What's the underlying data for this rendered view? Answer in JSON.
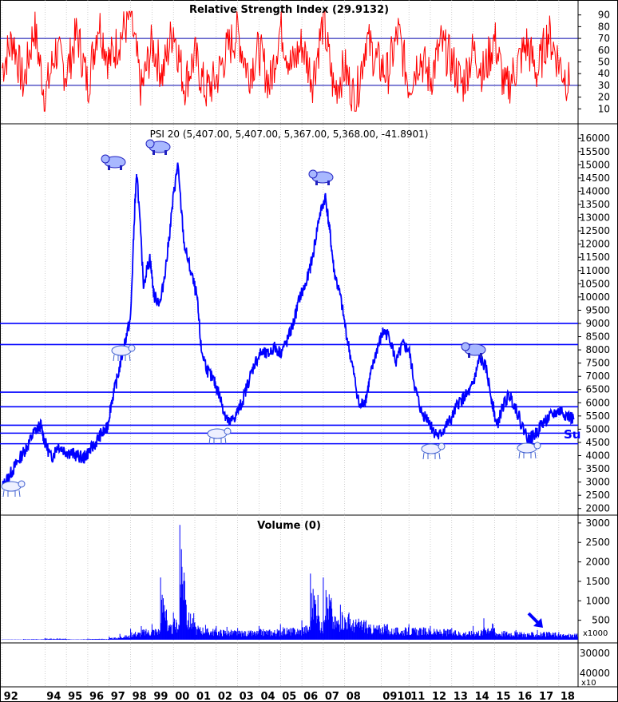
{
  "chart_data": [
    {
      "type": "line",
      "panel": "rsi",
      "title": "Relative Strength Index (29.9132)",
      "ylim": [
        0,
        100
      ],
      "yticks": [
        10,
        20,
        30,
        40,
        50,
        60,
        70,
        80,
        90
      ],
      "reference_lines": [
        30,
        70
      ],
      "series": [
        {
          "color": "#ff0000",
          "x": [
            1992.0,
            1992.5,
            1993.0,
            1993.5,
            1994.0,
            1994.5,
            1995.0,
            1995.5,
            1996.0,
            1996.5,
            1997.0,
            1997.5,
            1998.0,
            1998.5,
            1999.0,
            1999.5,
            2000.0,
            2000.5,
            2001.0,
            2001.5,
            2002.0,
            2002.5,
            2003.0,
            2003.5,
            2004.0,
            2004.5,
            2005.0,
            2005.5,
            2006.0,
            2006.5,
            2007.0,
            2007.5,
            2008.0,
            2008.5,
            2009.0,
            2009.5,
            2010.0,
            2010.5,
            2011.0,
            2011.5,
            2012.0,
            2012.5,
            2013.0,
            2013.5,
            2014.0,
            2014.5,
            2015.0,
            2015.5,
            2016.0,
            2016.5,
            2017.0,
            2017.5,
            2018.0,
            2018.5
          ],
          "values": [
            45,
            70,
            30,
            80,
            20,
            60,
            40,
            75,
            30,
            85,
            50,
            70,
            90,
            25,
            65,
            40,
            80,
            30,
            55,
            25,
            35,
            60,
            75,
            40,
            60,
            30,
            80,
            45,
            65,
            35,
            85,
            25,
            45,
            15,
            70,
            50,
            40,
            75,
            30,
            55,
            35,
            65,
            50,
            30,
            60,
            40,
            70,
            25,
            45,
            65,
            40,
            75,
            50,
            30
          ]
        }
      ]
    },
    {
      "type": "line",
      "panel": "price",
      "title": "PSI 20 (5,407.00, 5,407.00, 5,367.00, 5,368.00, -41.8901)",
      "ylim": [
        1750,
        16400
      ],
      "yticks": [
        2000,
        2500,
        3000,
        3500,
        4000,
        4500,
        5000,
        5500,
        6000,
        6500,
        7000,
        7500,
        8000,
        8500,
        9000,
        9500,
        10000,
        10500,
        11000,
        11500,
        12000,
        12500,
        13000,
        13500,
        14000,
        14500,
        15000,
        15500,
        16000
      ],
      "horizontal_lines": [
        9000,
        8200,
        6400,
        5850,
        5150,
        4850,
        4450
      ],
      "annotations": [
        "Su"
      ],
      "series": [
        {
          "color": "#0000ff",
          "x": [
            1992.0,
            1992.3,
            1992.6,
            1992.9,
            1993.2,
            1993.5,
            1993.8,
            1994.0,
            1994.3,
            1994.6,
            1994.9,
            1995.2,
            1995.5,
            1995.8,
            1996.0,
            1996.3,
            1996.6,
            1996.9,
            1997.1,
            1997.4,
            1997.7,
            1998.0,
            1998.2,
            1998.3,
            1998.6,
            1998.9,
            1999.1,
            1999.4,
            1999.7,
            2000.0,
            2000.2,
            2000.5,
            2000.8,
            2001.1,
            2001.3,
            2001.6,
            2001.9,
            2002.1,
            2002.4,
            2002.6,
            2002.9,
            2003.2,
            2003.5,
            2003.8,
            2004.1,
            2004.4,
            2004.7,
            2005.0,
            2005.3,
            2005.6,
            2005.9,
            2006.2,
            2006.5,
            2006.8,
            2007.1,
            2007.3,
            2007.5,
            2007.8,
            2008.1,
            2008.4,
            2008.7,
            2009.0,
            2009.2,
            2009.5,
            2009.8,
            2010.1,
            2010.4,
            2010.7,
            2011.0,
            2011.3,
            2011.6,
            2011.9,
            2012.1,
            2012.4,
            2012.7,
            2013.0,
            2013.3,
            2013.6,
            2013.9,
            2014.1,
            2014.3,
            2014.6,
            2014.9,
            2015.1,
            2015.4,
            2015.7,
            2016.0,
            2016.3,
            2016.6,
            2016.9,
            2017.2,
            2017.5,
            2017.8,
            2018.1,
            2018.4,
            2018.7
          ],
          "values": [
            2800,
            3200,
            3600,
            4000,
            4400,
            4900,
            5150,
            4500,
            3900,
            4400,
            4200,
            4100,
            4000,
            3900,
            4100,
            4400,
            4800,
            5000,
            6000,
            7000,
            8200,
            9200,
            13500,
            14700,
            10500,
            11500,
            10000,
            9800,
            11500,
            13800,
            15000,
            12000,
            11000,
            10000,
            8000,
            7200,
            6800,
            6400,
            5600,
            5200,
            5500,
            6000,
            6800,
            7500,
            7900,
            7800,
            8100,
            7900,
            8300,
            9000,
            10000,
            10500,
            11500,
            13000,
            13800,
            12500,
            11000,
            10000,
            8500,
            7200,
            5800,
            6200,
            7000,
            8000,
            8700,
            8500,
            7500,
            8200,
            8000,
            6500,
            5600,
            5400,
            5000,
            4700,
            5100,
            5400,
            6000,
            6200,
            6500,
            7000,
            7700,
            7300,
            6000,
            5100,
            5900,
            6300,
            5800,
            5100,
            4600,
            4800,
            5200,
            5400,
            5600,
            5700,
            5500,
            5370
          ]
        }
      ]
    },
    {
      "type": "bar",
      "panel": "volume",
      "title": "Volume (0)",
      "ylim": [
        0,
        3100
      ],
      "yticks": [
        500,
        1000,
        1500,
        2000,
        2500,
        3000
      ],
      "unit_label": "x1000",
      "lower_ticks": [
        "30000",
        "40000"
      ],
      "lower_unit_label": "x10",
      "x": [
        1992.0,
        1993.0,
        1994.0,
        1995.0,
        1996.0,
        1997.0,
        1997.5,
        1998.0,
        1998.5,
        1999.0,
        1999.4,
        1999.7,
        2000.0,
        2000.3,
        2000.6,
        2001.0,
        2001.5,
        2002.0,
        2002.5,
        2003.0,
        2004.0,
        2005.0,
        2006.0,
        2006.4,
        2006.8,
        2007.0,
        2007.4,
        2007.8,
        2008.2,
        2009.0,
        2010.0,
        2011.0,
        2012.0,
        2013.0,
        2014.0,
        2014.5,
        2015.0,
        2016.0,
        2017.0,
        2018.0
      ],
      "values": [
        10,
        20,
        40,
        20,
        30,
        80,
        150,
        280,
        350,
        400,
        1600,
        500,
        700,
        2950,
        900,
        450,
        380,
        350,
        330,
        300,
        350,
        400,
        500,
        1700,
        600,
        1600,
        800,
        900,
        700,
        500,
        400,
        400,
        350,
        300,
        350,
        550,
        300,
        250,
        250,
        200
      ]
    }
  ],
  "x_axis": {
    "tick_labels": [
      "92",
      "94",
      "95",
      "96",
      "97",
      "98",
      "99",
      "00",
      "01",
      "02",
      "03",
      "04",
      "05",
      "06",
      "07",
      "08",
      "0910",
      "11",
      "12",
      "13",
      "14",
      "15",
      "16",
      "17",
      "18"
    ],
    "tick_years": [
      1992,
      1994,
      1995,
      1996,
      1997,
      1998,
      1999,
      2000,
      2001,
      2002,
      2003,
      2004,
      2005,
      2006,
      2007,
      2008,
      2009.7,
      2011,
      2012,
      2013,
      2014,
      2015,
      2016,
      2017,
      2018
    ]
  },
  "colors": {
    "rsi_line": "#ff0000",
    "price_line": "#0000ff",
    "horizontal_lines": "#0000ff",
    "volume_bars": "#0000ff",
    "grid": "#b0b0b0"
  },
  "icons": [
    "bear-icon",
    "bull-icon",
    "down-right-arrow-icon"
  ]
}
